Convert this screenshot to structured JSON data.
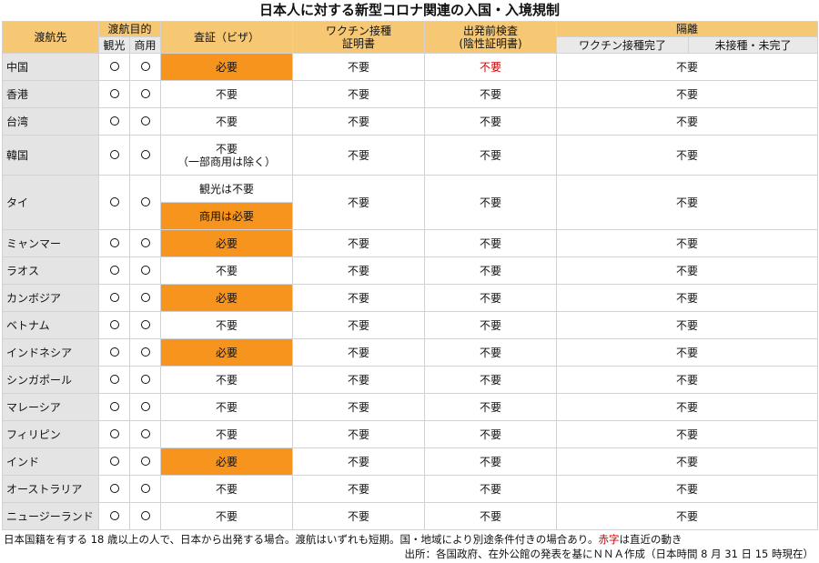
{
  "title": "日本人に対する新型コロナ関連の入国・入境規制",
  "header": {
    "destination": "渡航先",
    "purpose": "渡航目的",
    "tourism": "観光",
    "business": "商用",
    "visa": "査証（ビザ）",
    "vaccine_cert_line1": "ワクチン接種",
    "vaccine_cert_line2": "証明書",
    "test_line1": "出発前検査",
    "test_line2": "(陰性証明書)",
    "quarantine": "隔離",
    "vaccinated": "ワクチン接種完了",
    "unvaccinated": "未接種・未完了"
  },
  "circle_mark": "○",
  "colors": {
    "header": "#f7c873",
    "highlight": "#f7941d",
    "red_text": "#d20000",
    "country_bg": "#e4e4e4"
  },
  "rows": [
    {
      "country": "中国",
      "visa": "必要",
      "vaccine": "不要",
      "test": "不要",
      "quarantine": "不要"
    },
    {
      "country": "香港",
      "visa": "不要",
      "vaccine": "不要",
      "test": "不要",
      "quarantine": "不要"
    },
    {
      "country": "台湾",
      "visa": "不要",
      "vaccine": "不要",
      "test": "不要",
      "quarantine": "不要"
    },
    {
      "country": "韓国",
      "visa_line1": "不要",
      "visa_line2": "（一部商用は除く）",
      "vaccine": "不要",
      "test": "不要",
      "quarantine": "不要"
    },
    {
      "country": "タイ",
      "visa_tourism": "観光は不要",
      "visa_business": "商用は必要",
      "vaccine": "不要",
      "test": "不要",
      "quarantine": "不要"
    },
    {
      "country": "ミャンマー",
      "visa": "必要",
      "vaccine": "不要",
      "test": "不要",
      "quarantine": "不要"
    },
    {
      "country": "ラオス",
      "visa": "不要",
      "vaccine": "不要",
      "test": "不要",
      "quarantine": "不要"
    },
    {
      "country": "カンボジア",
      "visa": "必要",
      "vaccine": "不要",
      "test": "不要",
      "quarantine": "不要"
    },
    {
      "country": "ベトナム",
      "visa": "不要",
      "vaccine": "不要",
      "test": "不要",
      "quarantine": "不要"
    },
    {
      "country": "インドネシア",
      "visa": "必要",
      "vaccine": "不要",
      "test": "不要",
      "quarantine": "不要"
    },
    {
      "country": "シンガポール",
      "visa": "不要",
      "vaccine": "不要",
      "test": "不要",
      "quarantine": "不要"
    },
    {
      "country": "マレーシア",
      "visa": "不要",
      "vaccine": "不要",
      "test": "不要",
      "quarantine": "不要"
    },
    {
      "country": "フィリピン",
      "visa": "不要",
      "vaccine": "不要",
      "test": "不要",
      "quarantine": "不要"
    },
    {
      "country": "インド",
      "visa": "必要",
      "vaccine": "不要",
      "test": "不要",
      "quarantine": "不要"
    },
    {
      "country": "オーストラリア",
      "visa": "不要",
      "vaccine": "不要",
      "test": "不要",
      "quarantine": "不要"
    },
    {
      "country": "ニュージーランド",
      "visa": "不要",
      "vaccine": "不要",
      "test": "不要",
      "quarantine": "不要"
    }
  ],
  "footnote": {
    "part1": "日本国籍を有する 18 歳以上の人で、日本から出発する場合。渡航はいずれも短期。国・地域により別途条件付きの場合あり。",
    "red_word": "赤字",
    "part2": "は直近の動き"
  },
  "source": "出所：各国政府、在外公館の発表を基にＮＮＡ作成（日本時間 8 月 31 日 15 時現在）"
}
